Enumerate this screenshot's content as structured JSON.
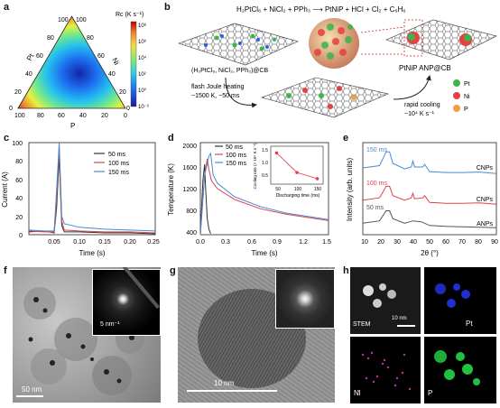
{
  "panels": {
    "a": {
      "label": "a",
      "colorbar_title": "Rc (K s⁻¹)",
      "colorbar_ticks": [
        "10⁸",
        "10⁶",
        "10⁴",
        "10²",
        "10⁰",
        "10⁻²"
      ],
      "axis_names": {
        "pt": "Pt",
        "ni": "Ni",
        "p": "P"
      },
      "left_ticks": [
        "0",
        "20",
        "40",
        "60",
        "80",
        "100"
      ],
      "right_ticks": [
        "100",
        "80",
        "60",
        "40",
        "20",
        "0"
      ],
      "bottom_ticks": [
        "100",
        "80",
        "60",
        "40",
        "20",
        "0"
      ]
    },
    "b": {
      "label": "b",
      "equation": "H₂PtCl₆ + NiCl₂ + PPh₃ ⟶ PtNiP + HCl + Cl₂ + C₆H₆",
      "precursor": "(H₂PtCl₆, NiCl₂, PPh₃)@CB",
      "heating_1": "flash Joule heating",
      "heating_2": "~1500 K, ~50 ms",
      "cooling_1": "rapid cooling",
      "cooling_2": "~10⁴ K s⁻¹",
      "product": "PtNiP ANP@CB",
      "legend": [
        {
          "name": "Pt",
          "color": "#3cb44b"
        },
        {
          "name": "Ni",
          "color": "#e64040"
        },
        {
          "name": "P",
          "color": "#f0a040"
        }
      ]
    },
    "c": {
      "label": "c",
      "ylabel": "Current (A)",
      "xlabel": "Time (s)",
      "yticks": [
        "0",
        "20",
        "40",
        "60",
        "80",
        "100"
      ],
      "xticks": [
        "0.05",
        "0.10",
        "0.15",
        "0.20",
        "0.25"
      ],
      "legend": [
        "50 ms",
        "100 ms",
        "150 ms"
      ]
    },
    "d": {
      "label": "d",
      "ylabel": "Temperature (K)",
      "xlabel": "Time (s)",
      "yticks": [
        "400",
        "800",
        "1200",
        "1600",
        "2000"
      ],
      "xticks": [
        "0.0",
        "0.3",
        "0.6",
        "0.9",
        "1.2",
        "1.5"
      ],
      "legend": [
        "50 ms",
        "100 ms",
        "150 ms"
      ],
      "inset_ylabel": "Cooling rate (× 10⁴ K s⁻¹)",
      "inset_xlabel": "Discharging time (ms)",
      "inset_yticks": [
        "0.5",
        "1.0",
        "1.5"
      ],
      "inset_xticks": [
        "50",
        "100",
        "150"
      ]
    },
    "e": {
      "label": "e",
      "ylabel": "Intensity (arb. units)",
      "xlabel": "2θ (°)",
      "xticks": [
        "10",
        "20",
        "30",
        "40",
        "50",
        "60",
        "70",
        "80",
        "90"
      ],
      "trace_labels": [
        "150 ms",
        "100 ms",
        "50 ms"
      ],
      "right_labels": [
        "CNPs",
        "CNPs",
        "ANPs"
      ]
    },
    "f": {
      "label": "f",
      "scale": "50 nm",
      "inset_scale": "5 nm⁻¹"
    },
    "g": {
      "label": "g",
      "scale": "10 nm"
    },
    "h": {
      "label": "h",
      "stem": "STEM",
      "scale": "10 nm",
      "pt": "Pt",
      "ni": "Ni",
      "p": "P"
    }
  },
  "chart_data": [
    {
      "type": "line",
      "title": "",
      "xlabel": "Time (s)",
      "ylabel": "Current (A)",
      "xlim": [
        0.0,
        0.25
      ],
      "ylim": [
        0,
        100
      ],
      "series": [
        {
          "name": "50 ms",
          "color": "#333333",
          "x": [
            0.0,
            0.03,
            0.05,
            0.055,
            0.06,
            0.065,
            0.07,
            0.1,
            0.15,
            0.2,
            0.25
          ],
          "values": [
            3,
            4,
            2,
            30,
            85,
            10,
            3,
            3,
            2,
            2,
            1
          ]
        },
        {
          "name": "100 ms",
          "color": "#e04050",
          "x": [
            0.0,
            0.03,
            0.05,
            0.055,
            0.06,
            0.065,
            0.07,
            0.1,
            0.15,
            0.2,
            0.25
          ],
          "values": [
            4,
            3,
            3,
            40,
            96,
            15,
            5,
            4,
            3,
            3,
            2
          ]
        },
        {
          "name": "150 ms",
          "color": "#4a8ad0",
          "x": [
            0.0,
            0.03,
            0.05,
            0.055,
            0.06,
            0.065,
            0.07,
            0.1,
            0.15,
            0.2,
            0.25
          ],
          "values": [
            5,
            4,
            4,
            50,
            100,
            20,
            12,
            8,
            6,
            5,
            4
          ]
        }
      ]
    },
    {
      "type": "line",
      "title": "",
      "xlabel": "Time (s)",
      "ylabel": "Temperature (K)",
      "xlim": [
        0.0,
        1.5
      ],
      "ylim": [
        300,
        2000
      ],
      "series": [
        {
          "name": "50 ms",
          "color": "#333333",
          "x": [
            0.0,
            0.03,
            0.05,
            0.06,
            0.08,
            0.1,
            0.12
          ],
          "values": [
            300,
            1300,
            1600,
            1200,
            600,
            400,
            320
          ]
        },
        {
          "name": "100 ms",
          "color": "#e04050",
          "x": [
            0.0,
            0.05,
            0.08,
            0.1,
            0.13,
            0.2,
            0.4,
            0.7,
            1.0,
            1.5
          ],
          "values": [
            300,
            1400,
            1700,
            1500,
            1300,
            1150,
            950,
            780,
            680,
            560
          ]
        },
        {
          "name": "150 ms",
          "color": "#4a8ad0",
          "x": [
            0.0,
            0.05,
            0.1,
            0.12,
            0.15,
            0.2,
            0.4,
            0.7,
            1.0,
            1.5
          ],
          "values": [
            300,
            1400,
            1750,
            1800,
            1400,
            1250,
            1000,
            820,
            700,
            580
          ]
        }
      ]
    },
    {
      "type": "scatter",
      "title": "",
      "xlabel": "Discharging time (ms)",
      "ylabel": "Cooling rate (× 10⁴ K s⁻¹)",
      "xlim": [
        40,
        160
      ],
      "ylim": [
        0.2,
        1.6
      ],
      "series": [
        {
          "name": "",
          "color": "#e04050",
          "x": [
            50,
            100,
            150
          ],
          "values": [
            1.4,
            0.6,
            0.35
          ]
        }
      ]
    },
    {
      "type": "line",
      "title": "",
      "xlabel": "2θ (°)",
      "ylabel": "Intensity (arb. units)",
      "xlim": [
        10,
        90
      ],
      "series": [
        {
          "name": "150 ms",
          "color": "#4a8ad0",
          "x": [
            10,
            20,
            24,
            26,
            28,
            35,
            39,
            40,
            41,
            46,
            47,
            50,
            60,
            70,
            80,
            90
          ],
          "values": [
            0.2,
            0.25,
            0.55,
            0.55,
            0.3,
            0.18,
            0.22,
            0.35,
            0.22,
            0.22,
            0.28,
            0.12,
            0.1,
            0.1,
            0.11,
            0.08
          ]
        },
        {
          "name": "100 ms",
          "color": "#e04050",
          "x": [
            10,
            20,
            24,
            26,
            28,
            35,
            39,
            40,
            41,
            46,
            47,
            50,
            60,
            70,
            80,
            90
          ],
          "values": [
            0.15,
            0.2,
            0.45,
            0.45,
            0.25,
            0.15,
            0.2,
            0.3,
            0.18,
            0.2,
            0.25,
            0.1,
            0.08,
            0.08,
            0.09,
            0.06
          ]
        },
        {
          "name": "50 ms",
          "color": "#555555",
          "x": [
            10,
            20,
            24,
            26,
            28,
            35,
            40,
            45,
            50,
            60,
            70,
            80,
            90
          ],
          "values": [
            0.15,
            0.2,
            0.42,
            0.42,
            0.25,
            0.15,
            0.2,
            0.18,
            0.1,
            0.08,
            0.07,
            0.06,
            0.05
          ]
        }
      ]
    }
  ]
}
